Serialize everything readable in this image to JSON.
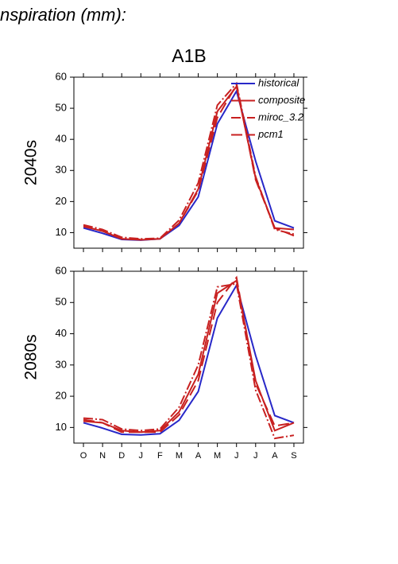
{
  "title": "nspiration (mm):",
  "scenario": "A1B",
  "chart_data": [
    {
      "type": "line",
      "ylabel": "2040s",
      "categories": [
        null,
        null,
        null,
        null,
        null,
        null,
        null,
        null,
        null,
        null,
        null,
        null
      ],
      "ylim": [
        5,
        60
      ],
      "yticks": [
        10,
        20,
        30,
        40,
        50,
        60
      ],
      "legend": "upper right",
      "series": [
        {
          "name": "historical",
          "color": "#2828c8",
          "dash": "solid",
          "values": [
            11.5,
            9.8,
            7.8,
            7.6,
            8,
            12.3,
            21.5,
            45,
            55.5,
            33,
            13.8,
            11.5
          ]
        },
        {
          "name": "composite",
          "color": "#c82020",
          "dash": "solid",
          "values": [
            12,
            10.5,
            8,
            7.7,
            8,
            13,
            24,
            49,
            57,
            27.5,
            11.5,
            11
          ]
        },
        {
          "name": "miroc_3.2",
          "color": "#c82020",
          "dash": "dashdot",
          "values": [
            12.5,
            11,
            8.5,
            8,
            8.2,
            14,
            26,
            51,
            58,
            28,
            11,
            9.5
          ]
        },
        {
          "name": "pcm1",
          "color": "#c82020",
          "dash": "longdash",
          "values": [
            12,
            10.5,
            8,
            7.8,
            8,
            13,
            23.5,
            47,
            57.5,
            27,
            11.5,
            9
          ]
        }
      ]
    },
    {
      "type": "line",
      "ylabel": "2080s",
      "categories": [
        "O",
        "N",
        "D",
        "J",
        "F",
        "M",
        "A",
        "M",
        "J",
        "J",
        "A",
        "S"
      ],
      "ylim": [
        5,
        60
      ],
      "yticks": [
        10,
        20,
        30,
        40,
        50,
        60
      ],
      "series": [
        {
          "color": "#2828c8",
          "dash": "solid",
          "values": [
            11.5,
            9.8,
            7.8,
            7.6,
            8,
            12.3,
            21.5,
            45,
            55.5,
            33,
            13.8,
            11.5
          ]
        },
        {
          "color": "#c82020",
          "dash": "solid",
          "values": [
            12,
            11.5,
            9,
            8.5,
            9,
            15,
            27,
            53,
            57,
            25,
            9,
            11.5
          ]
        },
        {
          "color": "#c82020",
          "dash": "dashdot",
          "values": [
            13,
            12.5,
            9.5,
            9,
            9.5,
            16.5,
            30,
            55,
            56,
            22,
            6.5,
            7.5
          ]
        },
        {
          "color": "#c82020",
          "dash": "longdash",
          "values": [
            12.5,
            11.5,
            8.5,
            8.5,
            8.5,
            14,
            25,
            50,
            58,
            24,
            10.5,
            11.5
          ]
        }
      ]
    }
  ]
}
